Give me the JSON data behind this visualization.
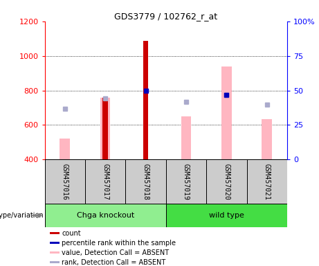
{
  "title": "GDS3779 / 102762_r_at",
  "samples": [
    "GSM457016",
    "GSM457017",
    "GSM457018",
    "GSM457019",
    "GSM457020",
    "GSM457021"
  ],
  "count_values": [
    null,
    760,
    1085,
    null,
    null,
    null
  ],
  "percentile_values": [
    null,
    null,
    800,
    null,
    775,
    null
  ],
  "absent_value": [
    520,
    760,
    null,
    650,
    940,
    635
  ],
  "absent_rank": [
    695,
    755,
    null,
    735,
    775,
    720
  ],
  "ylim_left": [
    400,
    1200
  ],
  "ylim_right": [
    0,
    100
  ],
  "yticks_left": [
    400,
    600,
    800,
    1000,
    1200
  ],
  "yticks_right": [
    0,
    25,
    50,
    75,
    100
  ],
  "ytick_right_labels": [
    "0",
    "25",
    "50",
    "75",
    "100%"
  ],
  "count_color": "#CC0000",
  "percentile_color": "#0000BB",
  "absent_value_color": "#FFB6C1",
  "absent_rank_color": "#AAAACC",
  "group1_color": "#90EE90",
  "group2_color": "#44DD44",
  "legend_items": [
    {
      "label": "count",
      "color": "#CC0000"
    },
    {
      "label": "percentile rank within the sample",
      "color": "#0000BB"
    },
    {
      "label": "value, Detection Call = ABSENT",
      "color": "#FFB6C1"
    },
    {
      "label": "rank, Detection Call = ABSENT",
      "color": "#AAAACC"
    }
  ]
}
